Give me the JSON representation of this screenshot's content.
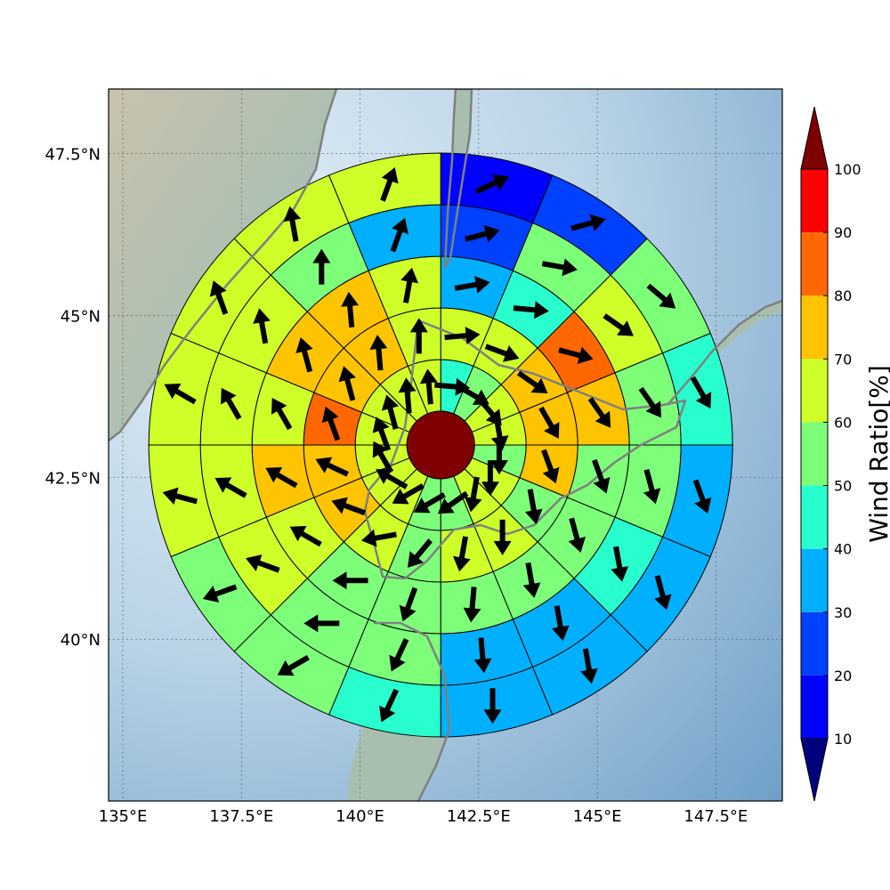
{
  "chart_data": {
    "type": "heatmap",
    "subtype": "polar-sector-wind-ratio-map",
    "map": {
      "lon_range": [
        134.7,
        148.9
      ],
      "lat_range": [
        37.5,
        48.5
      ],
      "x_ticks": [
        135,
        137.5,
        140,
        142.5,
        145,
        147.5
      ],
      "x_tick_labels": [
        "135°E",
        "137.5°E",
        "140°E",
        "142.5°E",
        "145°E",
        "147.5°E"
      ],
      "y_ticks": [
        40,
        42.5,
        45,
        47.5
      ],
      "y_tick_labels": [
        "40°N",
        "42.5°N",
        "45°N",
        "47.5°N"
      ],
      "grid": true,
      "background": "shaded-relief"
    },
    "polar_grid": {
      "center": [
        141.7,
        43.0
      ],
      "center_ratio": 100,
      "sectors": 16,
      "sector_start": "north",
      "direction": "clockwise",
      "rings": [
        {
          "ratio": [
            45,
            55,
            65,
            65,
            55,
            65,
            65,
            55,
            55,
            65,
            60,
            65,
            65,
            65,
            65,
            65
          ],
          "arrow": [
            95,
            120,
            140,
            170,
            180,
            180,
            190,
            235,
            240,
            240,
            300,
            330,
            340,
            345,
            355,
            355
          ]
        },
        {
          "ratio": [
            65,
            65,
            75,
            75,
            75,
            55,
            65,
            65,
            55,
            65,
            75,
            75,
            80,
            75,
            75,
            65
          ],
          "arrow": [
            85,
            110,
            125,
            150,
            160,
            170,
            180,
            190,
            220,
            260,
            290,
            295,
            340,
            345,
            355,
            0
          ]
        },
        {
          "ratio": [
            35,
            45,
            80,
            75,
            55,
            55,
            55,
            55,
            55,
            55,
            65,
            75,
            65,
            75,
            75,
            65
          ],
          "arrow": [
            80,
            95,
            105,
            145,
            160,
            165,
            170,
            185,
            200,
            270,
            300,
            300,
            330,
            345,
            355,
            10
          ]
        },
        {
          "ratio": [
            25,
            55,
            65,
            55,
            55,
            45,
            35,
            35,
            55,
            55,
            65,
            65,
            65,
            65,
            55,
            35
          ],
          "arrow": [
            75,
            100,
            125,
            145,
            165,
            170,
            170,
            175,
            205,
            270,
            290,
            300,
            330,
            350,
            0,
            20
          ]
        },
        {
          "ratio": [
            15,
            25,
            55,
            45,
            35,
            35,
            35,
            35,
            45,
            55,
            55,
            65,
            65,
            65,
            65,
            65
          ],
          "arrow": [
            65,
            75,
            130,
            150,
            160,
            165,
            170,
            180,
            205,
            240,
            250,
            285,
            300,
            340,
            350,
            20
          ]
        }
      ]
    },
    "colorbar": {
      "label": "Wind Ratio[%]",
      "ticks": [
        10,
        20,
        30,
        40,
        50,
        60,
        70,
        80,
        90,
        100
      ],
      "levels": [
        0,
        10,
        20,
        30,
        40,
        50,
        60,
        70,
        80,
        90,
        100,
        110
      ],
      "colors": [
        "#00007f",
        "#0000ff",
        "#0040ff",
        "#00b0ff",
        "#29ffce",
        "#7dff7a",
        "#ceff29",
        "#ffc400",
        "#ff6800",
        "#ff0000",
        "#7f0000"
      ],
      "extend": "both"
    }
  }
}
